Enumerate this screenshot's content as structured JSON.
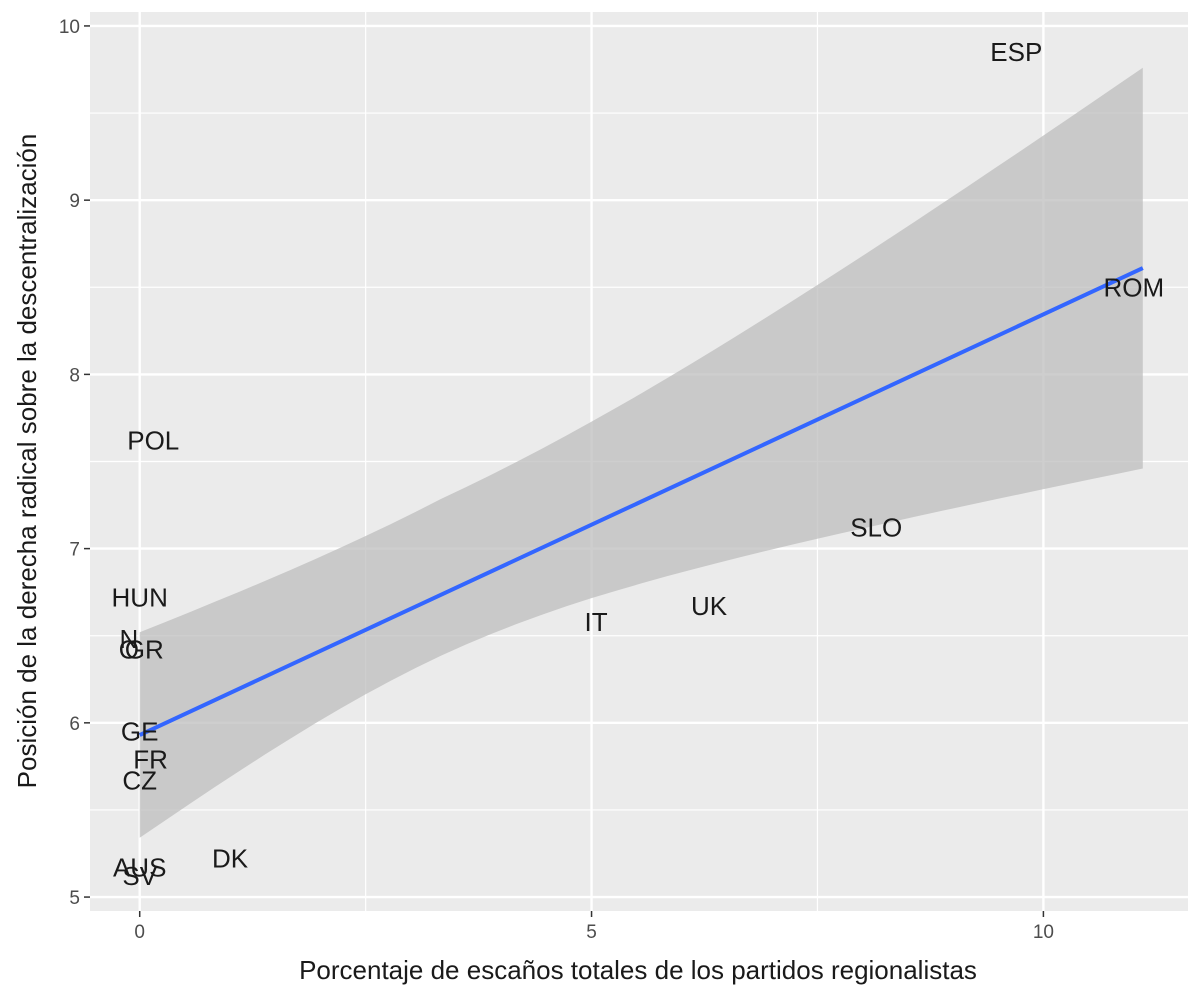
{
  "chart_data": {
    "type": "scatter",
    "title": "",
    "xlabel": "Porcentaje de escaños totales de los partidos regionalistas",
    "ylabel": "Posición de la derecha radical sobre la descentralización",
    "xlim": [
      -0.55,
      11.6
    ],
    "ylim": [
      4.92,
      10.08
    ],
    "x_ticks": [
      0,
      5,
      10
    ],
    "y_ticks": [
      5,
      6,
      7,
      8,
      9,
      10
    ],
    "x_tick_labels": [
      "0",
      "5",
      "10"
    ],
    "y_tick_labels": [
      "5",
      "6",
      "7",
      "8",
      "9",
      "10"
    ],
    "grid": true,
    "background": "#ebebeb",
    "grid_color": "#ffffff",
    "points": [
      {
        "label": "ESP",
        "x": 9.7,
        "y": 9.85
      },
      {
        "label": "ROM",
        "x": 11.0,
        "y": 8.5
      },
      {
        "label": "POL",
        "x": 0.15,
        "y": 7.62
      },
      {
        "label": "SLO",
        "x": 8.15,
        "y": 7.12
      },
      {
        "label": "HUN",
        "x": 0.0,
        "y": 6.72
      },
      {
        "label": "UK",
        "x": 6.3,
        "y": 6.67
      },
      {
        "label": "IT",
        "x": 5.05,
        "y": 6.58
      },
      {
        "label": "N",
        "x": -0.12,
        "y": 6.48
      },
      {
        "label": "GR",
        "x": 0.05,
        "y": 6.42
      },
      {
        "label": "O",
        "x": -0.12,
        "y": 6.42
      },
      {
        "label": "GE",
        "x": 0.0,
        "y": 5.95
      },
      {
        "label": "FR",
        "x": 0.12,
        "y": 5.79
      },
      {
        "label": "CZ",
        "x": 0.0,
        "y": 5.67
      },
      {
        "label": "DK",
        "x": 1.0,
        "y": 5.22
      },
      {
        "label": "AUS",
        "x": 0.0,
        "y": 5.17
      },
      {
        "label": "SV",
        "x": 0.0,
        "y": 5.12
      }
    ],
    "smooth": {
      "method": "lm",
      "color": "#3366ff",
      "ribbon_color": "#bdbdbd",
      "x": [
        0,
        11.1
      ],
      "fit": [
        5.93,
        8.61
      ],
      "lower": [
        5.34,
        7.46
      ],
      "upper": [
        6.52,
        9.76
      ]
    }
  }
}
